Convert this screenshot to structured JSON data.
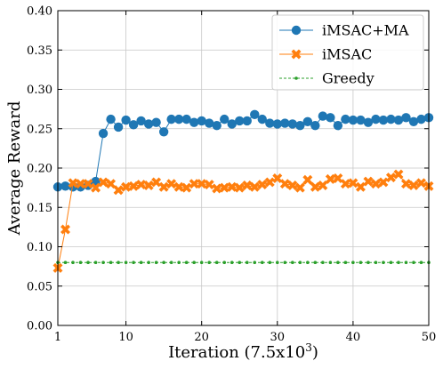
{
  "chart_data": {
    "type": "line",
    "title": "",
    "xlabel": "Iteration (7.5x10",
    "xlabel_sup": "3",
    "xlabel_close": ")",
    "ylabel": "Average Reward",
    "xlim": [
      1,
      50
    ],
    "ylim": [
      0.0,
      0.4
    ],
    "xticks": [
      1,
      10,
      20,
      30,
      40,
      50
    ],
    "yticks": [
      0.0,
      0.05,
      0.1,
      0.15,
      0.2,
      0.25,
      0.3,
      0.35,
      0.4
    ],
    "ytick_labels": [
      "0.00",
      "0.05",
      "0.10",
      "0.15",
      "0.20",
      "0.25",
      "0.30",
      "0.35",
      "0.40"
    ],
    "grid": true,
    "legend_position": "top-right",
    "x": [
      1,
      2,
      3,
      4,
      5,
      6,
      7,
      8,
      9,
      10,
      11,
      12,
      13,
      14,
      15,
      16,
      17,
      18,
      19,
      20,
      21,
      22,
      23,
      24,
      25,
      26,
      27,
      28,
      29,
      30,
      31,
      32,
      33,
      34,
      35,
      36,
      37,
      38,
      39,
      40,
      41,
      42,
      43,
      44,
      45,
      46,
      47,
      48,
      49,
      50
    ],
    "series": [
      {
        "name": "iMSAC+MA",
        "color": "#1f77b4",
        "marker": "circle",
        "values": [
          0.176,
          0.177,
          0.176,
          0.176,
          0.178,
          0.183,
          0.244,
          0.262,
          0.252,
          0.261,
          0.255,
          0.26,
          0.256,
          0.258,
          0.246,
          0.262,
          0.262,
          0.262,
          0.258,
          0.26,
          0.257,
          0.254,
          0.262,
          0.256,
          0.26,
          0.26,
          0.268,
          0.262,
          0.257,
          0.256,
          0.257,
          0.256,
          0.254,
          0.259,
          0.254,
          0.266,
          0.264,
          0.254,
          0.262,
          0.261,
          0.261,
          0.258,
          0.262,
          0.261,
          0.262,
          0.261,
          0.264,
          0.259,
          0.262,
          0.264
        ]
      },
      {
        "name": "iMSAC",
        "color": "#ff7f0e",
        "marker": "x",
        "values": [
          0.073,
          0.122,
          0.181,
          0.18,
          0.18,
          0.175,
          0.182,
          0.18,
          0.172,
          0.176,
          0.177,
          0.179,
          0.178,
          0.182,
          0.176,
          0.18,
          0.176,
          0.175,
          0.18,
          0.18,
          0.179,
          0.174,
          0.175,
          0.176,
          0.175,
          0.178,
          0.176,
          0.179,
          0.182,
          0.187,
          0.18,
          0.178,
          0.175,
          0.185,
          0.176,
          0.178,
          0.186,
          0.187,
          0.18,
          0.181,
          0.176,
          0.183,
          0.18,
          0.182,
          0.188,
          0.192,
          0.18,
          0.178,
          0.181,
          0.177
        ]
      },
      {
        "name": "Greedy",
        "color": "#2ca02c",
        "marker": "dot",
        "values": [
          0.08,
          0.08,
          0.08,
          0.08,
          0.08,
          0.08,
          0.08,
          0.08,
          0.08,
          0.08,
          0.08,
          0.08,
          0.08,
          0.08,
          0.08,
          0.08,
          0.08,
          0.08,
          0.08,
          0.08,
          0.08,
          0.08,
          0.08,
          0.08,
          0.08,
          0.08,
          0.08,
          0.08,
          0.08,
          0.08,
          0.08,
          0.08,
          0.08,
          0.08,
          0.08,
          0.08,
          0.08,
          0.08,
          0.08,
          0.08,
          0.08,
          0.08,
          0.08,
          0.08,
          0.08,
          0.08,
          0.08,
          0.08,
          0.08,
          0.08
        ]
      }
    ]
  }
}
